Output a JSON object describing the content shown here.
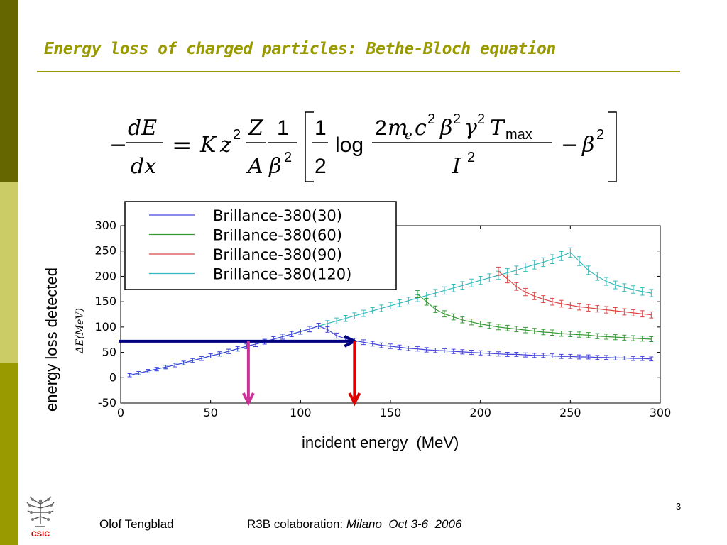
{
  "slide": {
    "title": "Energy loss of charged particles: Bethe-Bloch equation",
    "page_number": "3",
    "footer_author": "Olof Tengblad",
    "footer_prefix": "R3B colaboration: ",
    "footer_event": "Milano  Oct 3-6  2006",
    "logo_text": "CSIC",
    "y_axis_outer": "energy loss detected",
    "x_axis_outer": "incident energy  (MeV)",
    "colors": {
      "title": "#999900",
      "sidebar_dark": "#666600",
      "sidebar_light": "#cccc66",
      "sidebar_mid": "#999900",
      "logo_red": "#cc0000"
    }
  },
  "equation": {
    "lhs_minus": "−",
    "lhs_num": "dE",
    "lhs_den": "dx",
    "equals": "=",
    "K": "K",
    "z": "z",
    "sq": "2",
    "Z": "Z",
    "A": "A",
    "one": "1",
    "beta": "β",
    "half_num": "1",
    "half_den": "2",
    "log": "log",
    "num_two": "2",
    "m": "m",
    "e_sub": "e",
    "c": "c",
    "gamma": "γ",
    "T": "T",
    "max": "max",
    "I": "I",
    "minus": "−"
  },
  "chart_data": {
    "type": "line",
    "ylabel": "ΔE(MeV)",
    "xlim": [
      0,
      300
    ],
    "ylim": [
      -50,
      300
    ],
    "x_ticks": [
      "0",
      "50",
      "100",
      "150",
      "200",
      "250",
      "300"
    ],
    "y_ticks": [
      "300",
      "250",
      "200",
      "150",
      "100",
      "50",
      "0",
      "-50"
    ],
    "legend_position": "top-left",
    "error_bars": true,
    "series": [
      {
        "name": "Brillance-380(30)",
        "color": "#4444dd",
        "x": [
          5,
          10,
          15,
          20,
          25,
          30,
          35,
          40,
          45,
          50,
          55,
          60,
          65,
          70,
          75,
          80,
          85,
          90,
          95,
          100,
          105,
          110,
          115,
          120,
          125,
          130,
          135,
          140,
          145,
          150,
          155,
          160,
          165,
          170,
          175,
          180,
          185,
          190,
          195,
          200,
          205,
          210,
          215,
          220,
          225,
          230,
          235,
          240,
          245,
          250,
          255,
          260,
          265,
          270,
          275,
          280,
          285,
          290,
          295
        ],
        "y": [
          5,
          9,
          13,
          17,
          21,
          25,
          29,
          34,
          38,
          43,
          47,
          52,
          57,
          62,
          66,
          71,
          76,
          81,
          86,
          91,
          96,
          102,
          95,
          83,
          77,
          73,
          70,
          67,
          64,
          62,
          60,
          58,
          57,
          55,
          54,
          53,
          52,
          51,
          50,
          49,
          48,
          47,
          46,
          46,
          45,
          44,
          44,
          43,
          42,
          42,
          41,
          41,
          40,
          40,
          39,
          39,
          38,
          38,
          37
        ]
      },
      {
        "name": "Brillance-380(60)",
        "color": "#339933",
        "x": [
          165,
          170,
          175,
          180,
          185,
          190,
          195,
          200,
          205,
          210,
          215,
          220,
          225,
          230,
          235,
          240,
          245,
          250,
          255,
          260,
          265,
          270,
          275,
          280,
          285,
          290,
          295
        ],
        "y": [
          165,
          150,
          135,
          126,
          120,
          114,
          110,
          106,
          103,
          100,
          98,
          96,
          94,
          92,
          90,
          89,
          87,
          86,
          85,
          84,
          82,
          81,
          80,
          79,
          78,
          77,
          76
        ]
      },
      {
        "name": "Brillance-380(90)",
        "color": "#dd4444",
        "x": [
          210,
          215,
          220,
          225,
          230,
          235,
          240,
          245,
          250,
          255,
          260,
          265,
          270,
          275,
          280,
          285,
          290,
          295
        ],
        "y": [
          210,
          195,
          180,
          169,
          161,
          155,
          150,
          146,
          143,
          140,
          138,
          136,
          134,
          132,
          130,
          128,
          126,
          124
        ]
      },
      {
        "name": "Brillance-380(120)",
        "color": "#33bbbb",
        "x": [
          5,
          10,
          15,
          20,
          25,
          30,
          35,
          40,
          45,
          50,
          55,
          60,
          65,
          70,
          75,
          80,
          85,
          90,
          95,
          100,
          105,
          110,
          115,
          120,
          125,
          130,
          135,
          140,
          145,
          150,
          155,
          160,
          165,
          170,
          175,
          180,
          185,
          190,
          195,
          200,
          205,
          210,
          215,
          220,
          225,
          230,
          235,
          240,
          245,
          250,
          255,
          260,
          265,
          270,
          275,
          280,
          285,
          290,
          295
        ],
        "y": [
          5,
          9,
          13,
          17,
          21,
          25,
          29,
          34,
          38,
          43,
          47,
          52,
          57,
          62,
          66,
          71,
          76,
          81,
          86,
          91,
          96,
          102,
          107,
          112,
          117,
          122,
          127,
          132,
          137,
          142,
          147,
          152,
          157,
          162,
          167,
          172,
          177,
          182,
          187,
          192,
          197,
          202,
          207,
          212,
          218,
          223,
          228,
          234,
          240,
          247,
          230,
          212,
          200,
          190,
          183,
          178,
          174,
          170,
          167
        ]
      }
    ],
    "annotations": {
      "horizontal_arrow": {
        "y": 72,
        "x_from": 0,
        "x_to": 130,
        "color": "#000080"
      },
      "arrow_magenta": {
        "x": 71,
        "y_from": 72,
        "y_to": -50,
        "color": "#cc3399"
      },
      "arrow_red": {
        "x": 130,
        "y_from": 72,
        "y_to": -50,
        "color": "#dd0000"
      }
    }
  }
}
